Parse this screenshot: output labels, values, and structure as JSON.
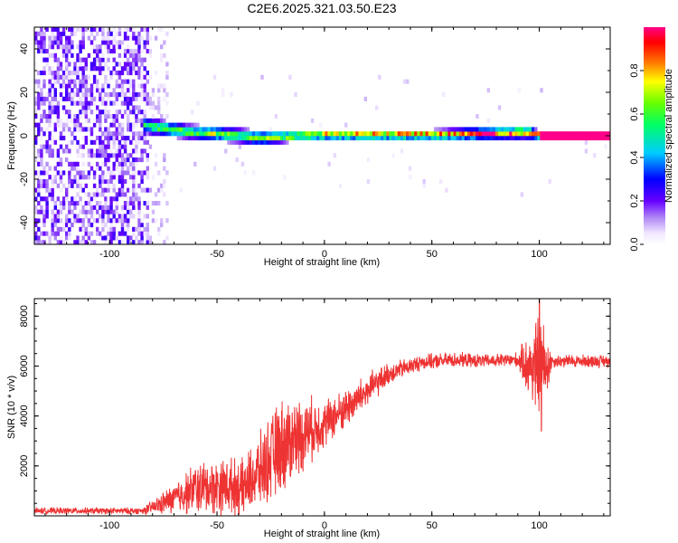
{
  "title": "C2E6.2025.321.03.50.E23",
  "chart_data": [
    {
      "type": "heatmap",
      "name": "spectrogram",
      "xlabel": "Height of straight line (km)",
      "ylabel": "Frequency (Hz)",
      "xlim": [
        -135,
        133
      ],
      "ylim": [
        -50,
        50
      ],
      "xticks": [
        -100,
        -50,
        0,
        50,
        100
      ],
      "xtick_labels": [
        "-100",
        "-50",
        "0",
        "50",
        "100"
      ],
      "yticks": [
        -40,
        -20,
        0,
        20,
        40
      ],
      "ytick_labels": [
        "-40",
        "-20",
        "0",
        "20",
        "40"
      ],
      "noise_region_x": [
        -135,
        -83
      ],
      "sparse_region_x": [
        -83,
        -73
      ],
      "signal_band": [
        {
          "x": -88,
          "center_hz": 6,
          "halfwidth_hz": 4,
          "amp": 0.5
        },
        {
          "x": -80,
          "center_hz": 4,
          "halfwidth_hz": 4,
          "amp": 0.55
        },
        {
          "x": -65,
          "center_hz": 2,
          "halfwidth_hz": 3.5,
          "amp": 0.6
        },
        {
          "x": -40,
          "center_hz": 0,
          "halfwidth_hz": 3.5,
          "amp": 0.6
        },
        {
          "x": -30,
          "center_hz": -1,
          "halfwidth_hz": 3.5,
          "amp": 0.6
        },
        {
          "x": -13,
          "center_hz": 0,
          "halfwidth_hz": 2.5,
          "amp": 0.7
        },
        {
          "x": 0,
          "center_hz": 0.5,
          "halfwidth_hz": 2.5,
          "amp": 0.8
        },
        {
          "x": 50,
          "center_hz": 0.5,
          "halfwidth_hz": 2.5,
          "amp": 0.85
        },
        {
          "x": 95,
          "center_hz": 1.5,
          "halfwidth_hz": 3,
          "amp": 0.85
        },
        {
          "x": 100,
          "center_hz": 0,
          "halfwidth_hz": 2,
          "amp": 0.95
        },
        {
          "x": 133,
          "center_hz": 0,
          "halfwidth_hz": 2,
          "amp": 0.95
        }
      ],
      "colorbar": {
        "label": "Normalized spectral amplitude",
        "range": [
          0,
          1
        ],
        "ticks": [
          0.0,
          0.2,
          0.4,
          0.6,
          0.8
        ],
        "tick_labels": [
          "0.0",
          "0.2",
          "0.4",
          "0.6",
          "0.8"
        ]
      }
    },
    {
      "type": "line",
      "name": "snr",
      "xlabel": "Height of straight line (km)",
      "ylabel": "SNR (10 * v/v)",
      "xlim": [
        -135,
        133
      ],
      "ylim": [
        0,
        8700
      ],
      "xticks": [
        -100,
        -50,
        0,
        50,
        100
      ],
      "xtick_labels": [
        "-100",
        "-50",
        "0",
        "50",
        "100"
      ],
      "yticks": [
        2000,
        4000,
        6000,
        8000
      ],
      "ytick_labels": [
        "2000",
        "4000",
        "6000",
        "8000"
      ],
      "color": "#ee3333",
      "trend": [
        {
          "x": -135,
          "y": 200,
          "jitter": 150
        },
        {
          "x": -85,
          "y": 200,
          "jitter": 150
        },
        {
          "x": -78,
          "y": 400,
          "jitter": 400
        },
        {
          "x": -70,
          "y": 700,
          "jitter": 700
        },
        {
          "x": -60,
          "y": 1100,
          "jitter": 1200
        },
        {
          "x": -45,
          "y": 1200,
          "jitter": 1300
        },
        {
          "x": -38,
          "y": 1100,
          "jitter": 1300
        },
        {
          "x": -30,
          "y": 1800,
          "jitter": 1700
        },
        {
          "x": -20,
          "y": 2800,
          "jitter": 2200
        },
        {
          "x": -10,
          "y": 3300,
          "jitter": 1700
        },
        {
          "x": 0,
          "y": 3700,
          "jitter": 1100
        },
        {
          "x": 10,
          "y": 4300,
          "jitter": 900
        },
        {
          "x": 20,
          "y": 5000,
          "jitter": 800
        },
        {
          "x": 30,
          "y": 5700,
          "jitter": 500
        },
        {
          "x": 45,
          "y": 6150,
          "jitter": 350
        },
        {
          "x": 60,
          "y": 6250,
          "jitter": 350
        },
        {
          "x": 75,
          "y": 6200,
          "jitter": 300
        },
        {
          "x": 90,
          "y": 6250,
          "jitter": 350
        },
        {
          "x": 95,
          "y": 6000,
          "jitter": 1500
        },
        {
          "x": 100,
          "y": 6000,
          "jitter": 2500
        },
        {
          "x": 103,
          "y": 6000,
          "jitter": 1800
        },
        {
          "x": 106,
          "y": 6200,
          "jitter": 300
        },
        {
          "x": 133,
          "y": 6200,
          "jitter": 300
        }
      ],
      "peak": {
        "x": 100,
        "y": 8700
      },
      "trough": {
        "x": 101,
        "y": 3400
      }
    }
  ]
}
